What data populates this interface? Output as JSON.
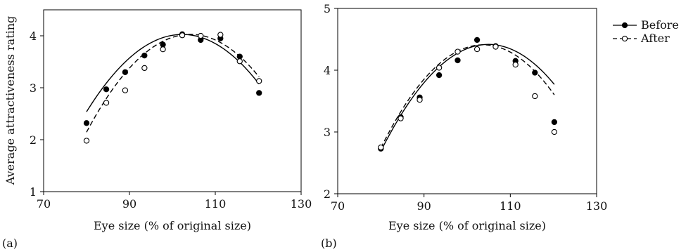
{
  "chart_data": [
    {
      "type": "line",
      "panel_label": "(a)",
      "xlabel": "Eye size (% of original size)",
      "ylabel": "Average attractiveness rating",
      "xlim": [
        70,
        130
      ],
      "ylim": [
        1,
        4.5
      ],
      "xticks": [
        70,
        90,
        110,
        130
      ],
      "yticks": [
        1,
        2,
        3,
        4
      ],
      "grid": false,
      "series": [
        {
          "name": "Before",
          "marker": "filled-circle",
          "line": "solid",
          "color": "#000000",
          "x": [
            80,
            84.6,
            89,
            93.5,
            97.8,
            102.3,
            106.6,
            111.2,
            115.7,
            120.2
          ],
          "y": [
            2.32,
            2.97,
            3.3,
            3.62,
            3.83,
            4.03,
            3.92,
            3.95,
            3.6,
            2.9
          ],
          "fit": [
            -0.002988,
            0.6115,
            -27.26
          ]
        },
        {
          "name": "After",
          "marker": "open-circle",
          "line": "dashed",
          "color": "#000000",
          "x": [
            80,
            84.6,
            89,
            93.5,
            97.8,
            102.3,
            106.6,
            111.2,
            115.7,
            120.2
          ],
          "y": [
            1.98,
            2.71,
            2.95,
            3.38,
            3.74,
            4.01,
            4.0,
            4.02,
            3.51,
            3.13
          ],
          "fit": [
            -0.003208,
            0.6687,
            -30.82
          ]
        }
      ]
    },
    {
      "type": "line",
      "panel_label": "(b)",
      "xlabel": "Eye size (% of original size)",
      "ylabel": "",
      "xlim": [
        70,
        130
      ],
      "ylim": [
        2,
        5
      ],
      "xticks": [
        70,
        90,
        110,
        130
      ],
      "yticks": [
        2,
        3,
        4,
        5
      ],
      "grid": false,
      "legend_position": "top-right, outside plot",
      "series": [
        {
          "name": "Before",
          "marker": "filled-circle",
          "line": "solid",
          "color": "#000000",
          "x": [
            80,
            84.6,
            89,
            93.5,
            97.8,
            102.3,
            106.6,
            111.2,
            115.7,
            120.2
          ],
          "y": [
            2.73,
            3.24,
            3.56,
            3.92,
            4.16,
            4.49,
            4.39,
            4.15,
            3.96,
            3.16
          ],
          "fit": [
            -0.002779,
            0.5832,
            -26.18
          ]
        },
        {
          "name": "After",
          "marker": "open-circle",
          "line": "dashed",
          "color": "#000000",
          "x": [
            80,
            84.6,
            89,
            93.5,
            97.8,
            102.3,
            106.6,
            111.2,
            115.7,
            120.2
          ],
          "y": [
            2.75,
            3.22,
            3.52,
            4.04,
            4.3,
            4.34,
            4.38,
            4.09,
            3.58,
            3.0
          ],
          "fit": [
            -0.002974,
            0.6168,
            -27.57
          ]
        }
      ]
    }
  ],
  "legend": {
    "items": [
      {
        "label": "Before",
        "marker": "filled-circle",
        "line": "solid"
      },
      {
        "label": "After",
        "marker": "open-circle",
        "line": "dashed"
      }
    ]
  }
}
